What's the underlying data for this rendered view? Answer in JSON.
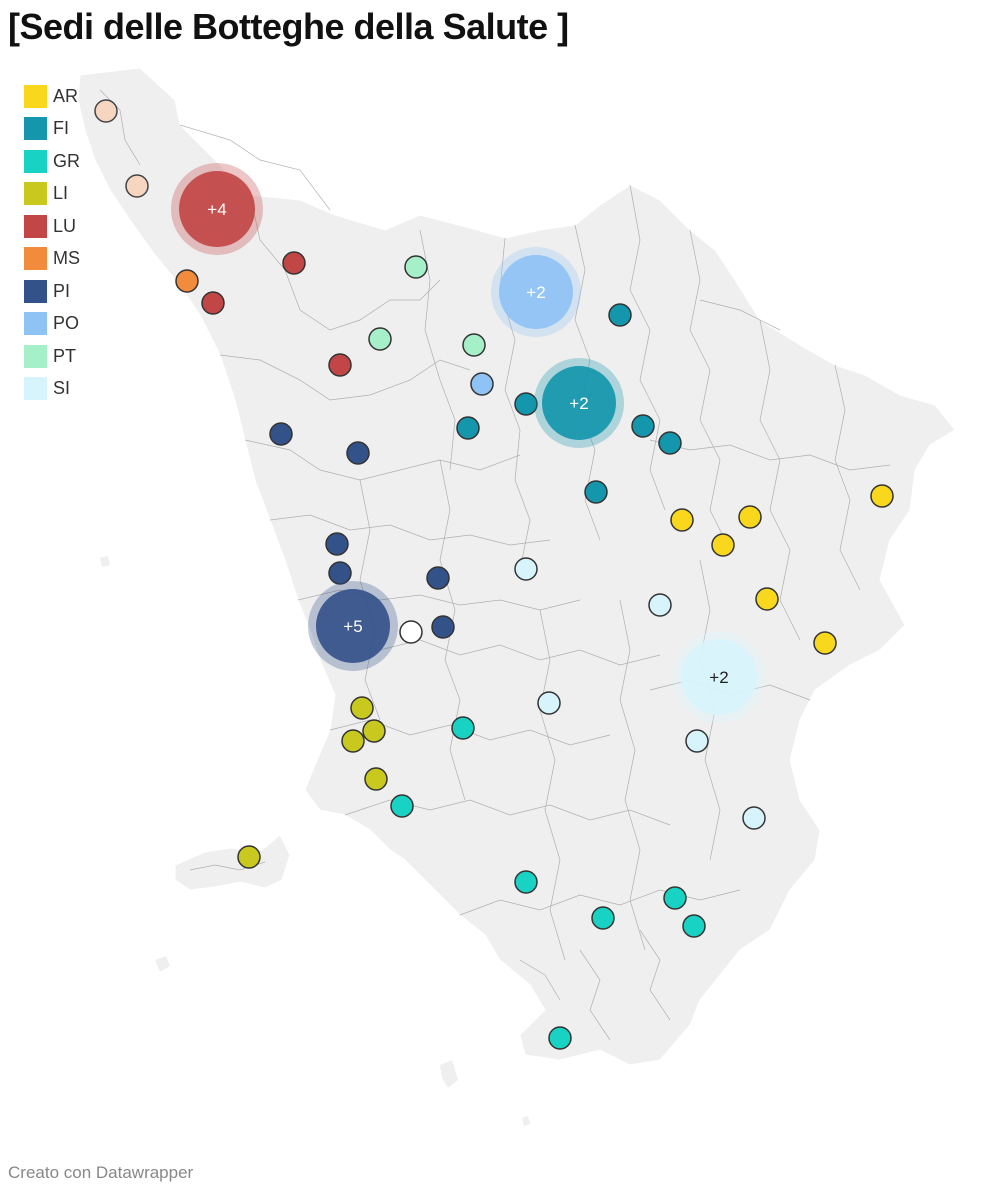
{
  "title": "[Sedi delle Botteghe della Salute ]",
  "credit": "Creato con Datawrapper",
  "legend": [
    {
      "label": "AR",
      "color": "#f9d71c"
    },
    {
      "label": "FI",
      "color": "#1496ac"
    },
    {
      "label": "GR",
      "color": "#18d2c3"
    },
    {
      "label": "LI",
      "color": "#c8c81e"
    },
    {
      "label": "LU",
      "color": "#c24646"
    },
    {
      "label": "MS",
      "color": "#f28c3c"
    },
    {
      "label": "PI",
      "color": "#34528a"
    },
    {
      "label": "PO",
      "color": "#8fc2f5"
    },
    {
      "label": "PT",
      "color": "#a6f0c9"
    },
    {
      "label": "SI",
      "color": "#d7f4fc"
    }
  ],
  "markers": [
    {
      "province": "AR"
    },
    {
      "province": "AR"
    },
    {
      "province": "AR"
    },
    {
      "province": "AR"
    },
    {
      "province": "AR"
    },
    {
      "province": "AR"
    },
    {
      "province": "AR"
    },
    {
      "province": "FI"
    },
    {
      "province": "FI"
    },
    {
      "province": "FI"
    },
    {
      "province": "FI"
    },
    {
      "province": "FI"
    },
    {
      "province": "FI"
    },
    {
      "province": "FI"
    },
    {
      "province": "GR"
    },
    {
      "province": "GR"
    },
    {
      "province": "GR"
    },
    {
      "province": "GR"
    },
    {
      "province": "GR"
    },
    {
      "province": "GR"
    },
    {
      "province": "GR"
    },
    {
      "province": "LI"
    },
    {
      "province": "LI"
    },
    {
      "province": "LI"
    },
    {
      "province": "LI"
    },
    {
      "province": "LI"
    },
    {
      "province": "LU"
    },
    {
      "province": "LU"
    },
    {
      "province": "LU"
    },
    {
      "province": "MS"
    },
    {
      "province": "PI"
    },
    {
      "province": "PI"
    },
    {
      "province": "PI"
    },
    {
      "province": "PI"
    },
    {
      "province": "PI"
    },
    {
      "province": "PI"
    },
    {
      "province": "PO"
    },
    {
      "province": "PT"
    },
    {
      "province": "PT"
    },
    {
      "province": "PT"
    },
    {
      "province": "SI"
    },
    {
      "province": "SI"
    },
    {
      "province": "SI"
    },
    {
      "province": "SI"
    },
    {
      "province": "SI"
    },
    {
      "province": "SI"
    },
    {
      "province": "MS"
    },
    {
      "province": "MS"
    }
  ],
  "clusters": [
    {
      "province": "LU",
      "label": "+4"
    },
    {
      "province": "PO",
      "label": "+2"
    },
    {
      "province": "FI",
      "label": "+2"
    },
    {
      "province": "PI",
      "label": "+5"
    },
    {
      "province": "SI",
      "label": "+2"
    }
  ]
}
